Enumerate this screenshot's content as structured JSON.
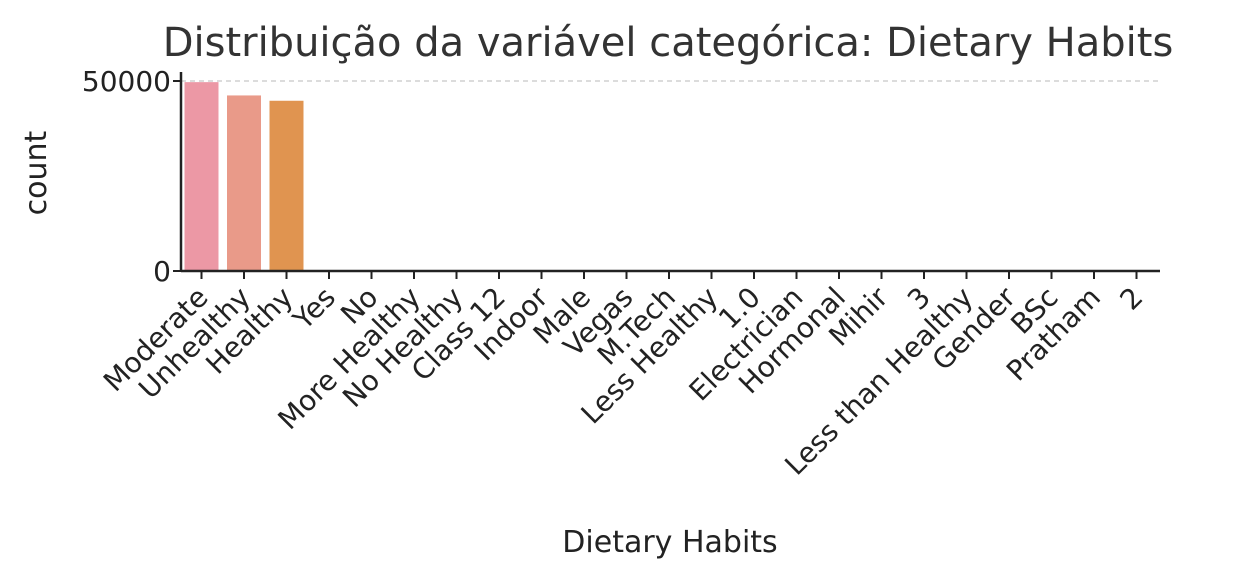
{
  "chart_data": {
    "type": "bar",
    "title": "Distribuição da variável categórica: Dietary Habits",
    "xlabel": "Dietary Habits",
    "ylabel": "count",
    "categories": [
      "Moderate",
      "Unhealthy",
      "Healthy",
      "Yes",
      "No",
      "More Healthy",
      "No Healthy",
      "Class 12",
      "Indoor",
      "Male",
      "Vegas",
      "M.Tech",
      "Less Healthy",
      "1.0",
      "Electrician",
      "Hormonal",
      "Mihir",
      "3",
      "Less than Healthy",
      "Gender",
      "BSc",
      "Pratham",
      "2"
    ],
    "values": [
      49700,
      46200,
      44800,
      2,
      2,
      2,
      2,
      1,
      1,
      1,
      1,
      1,
      1,
      1,
      1,
      1,
      1,
      1,
      1,
      1,
      1,
      1,
      1
    ],
    "ylim": [
      0,
      50000
    ],
    "yticks": [
      "0",
      "50000"
    ],
    "grid": "horizontal dashed",
    "colors": [
      "#ec98a5",
      "#e99a89",
      "#e09450"
    ]
  }
}
